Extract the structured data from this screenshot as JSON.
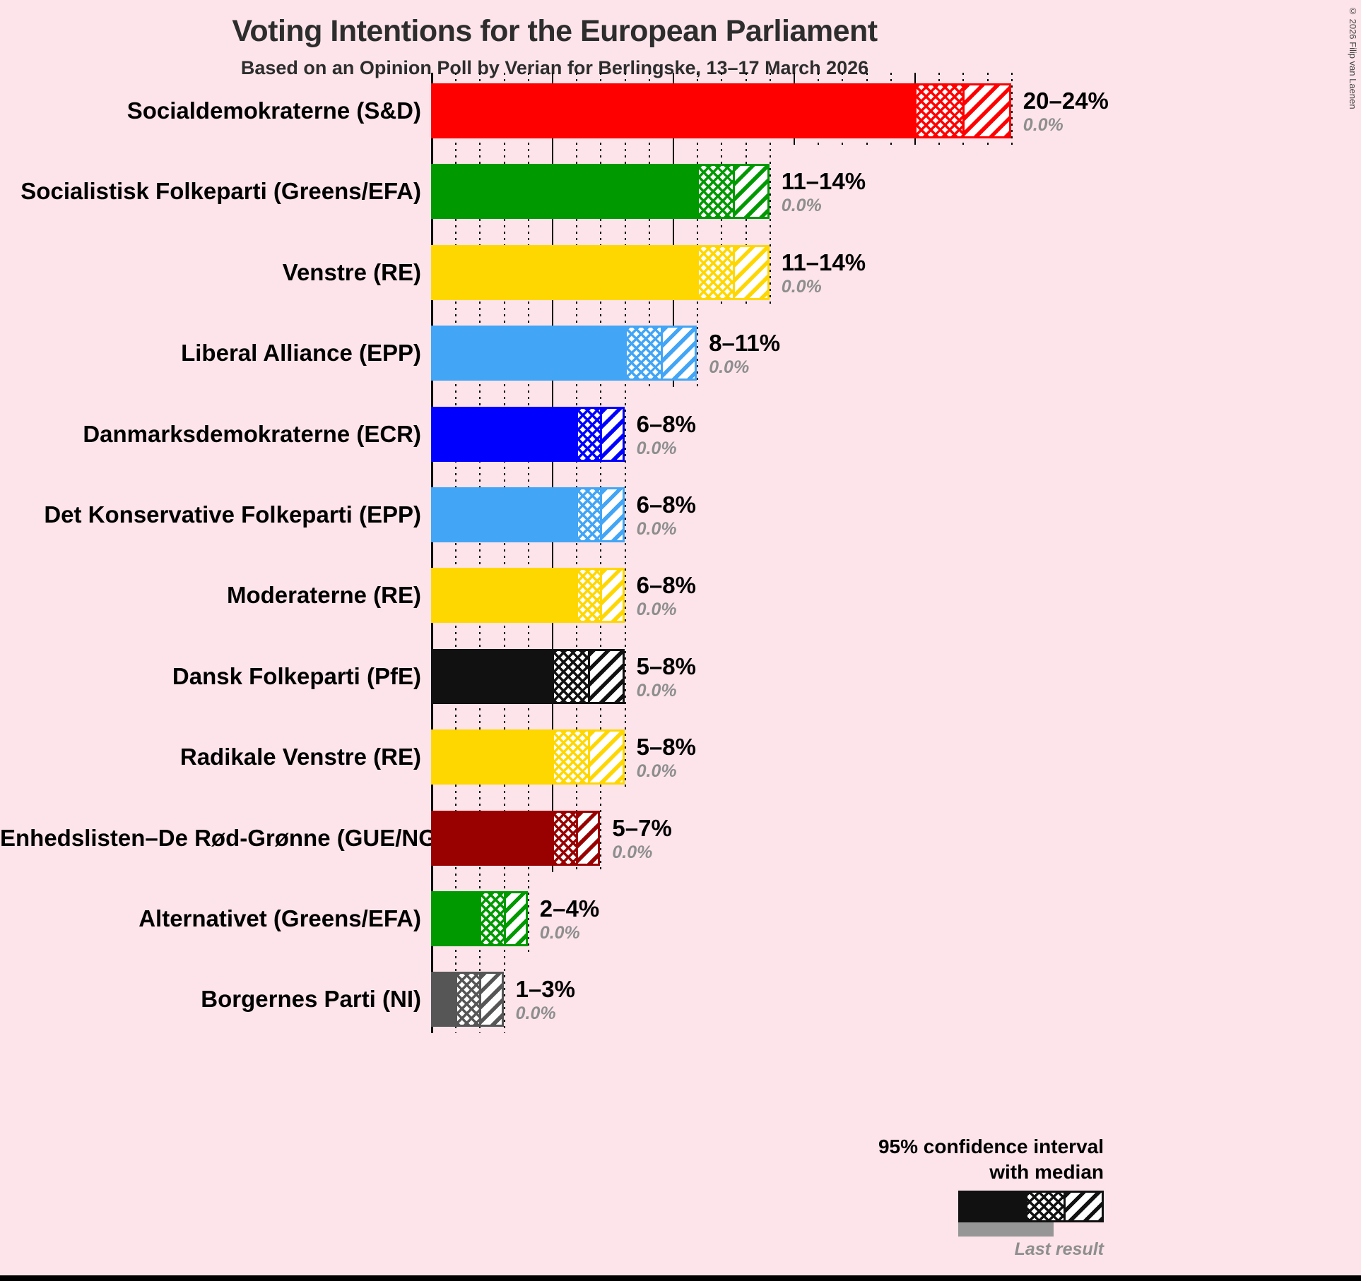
{
  "title": "Voting Intentions for the European Parliament",
  "subtitle": "Based on an Opinion Poll by Verian for Berlingske, 13–17 March 2026",
  "copyright": "© 2026 Filip van Laenen",
  "colors": {
    "background": "#FCE4EA",
    "text": "#000000",
    "muted_text": "#8E8E8E",
    "grid": "#000000"
  },
  "legend": {
    "ci_line1": "95% confidence interval",
    "ci_line2": "with median",
    "last_result_label": "Last result",
    "sample_color": "#111111",
    "last_result_color": "#969696"
  },
  "chart_data": {
    "type": "bar",
    "orientation": "horizontal",
    "x_axis": {
      "min": 0,
      "max": 24,
      "major_tick": 5,
      "minor_tick": 1,
      "unit": "%"
    },
    "parties": [
      {
        "label": "Socialdemokraterne (S&D)",
        "low": 20,
        "median": 22,
        "high": 24,
        "range_label": "20–24%",
        "last_result": "0.0%",
        "color": "#FF0000"
      },
      {
        "label": "Socialistisk Folkeparti (Greens/EFA)",
        "low": 11,
        "median": 12.5,
        "high": 14,
        "range_label": "11–14%",
        "last_result": "0.0%",
        "color": "#009900"
      },
      {
        "label": "Venstre (RE)",
        "low": 11,
        "median": 12.5,
        "high": 14,
        "range_label": "11–14%",
        "last_result": "0.0%",
        "color": "#FFD700"
      },
      {
        "label": "Liberal Alliance (EPP)",
        "low": 8,
        "median": 9.5,
        "high": 11,
        "range_label": "8–11%",
        "last_result": "0.0%",
        "color": "#42A5F5"
      },
      {
        "label": "Danmarksdemokraterne (ECR)",
        "low": 6,
        "median": 7,
        "high": 8,
        "range_label": "6–8%",
        "last_result": "0.0%",
        "color": "#0000FF"
      },
      {
        "label": "Det Konservative Folkeparti (EPP)",
        "low": 6,
        "median": 7,
        "high": 8,
        "range_label": "6–8%",
        "last_result": "0.0%",
        "color": "#42A5F5"
      },
      {
        "label": "Moderaterne (RE)",
        "low": 6,
        "median": 7,
        "high": 8,
        "range_label": "6–8%",
        "last_result": "0.0%",
        "color": "#FFD700"
      },
      {
        "label": "Dansk Folkeparti (PfE)",
        "low": 5,
        "median": 6.5,
        "high": 8,
        "range_label": "5–8%",
        "last_result": "0.0%",
        "color": "#111111"
      },
      {
        "label": "Radikale Venstre (RE)",
        "low": 5,
        "median": 6.5,
        "high": 8,
        "range_label": "5–8%",
        "last_result": "0.0%",
        "color": "#FFD700"
      },
      {
        "label": "Enhedslisten–De Rød-Grønne (GUE/NGL)",
        "low": 5,
        "median": 6,
        "high": 7,
        "range_label": "5–7%",
        "last_result": "0.0%",
        "color": "#990000"
      },
      {
        "label": "Alternativet (Greens/EFA)",
        "low": 2,
        "median": 3,
        "high": 4,
        "range_label": "2–4%",
        "last_result": "0.0%",
        "color": "#009900"
      },
      {
        "label": "Borgernes Parti (NI)",
        "low": 1,
        "median": 2,
        "high": 3,
        "range_label": "1–3%",
        "last_result": "0.0%",
        "color": "#565656"
      }
    ]
  }
}
